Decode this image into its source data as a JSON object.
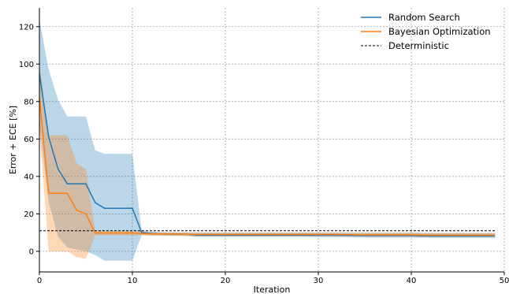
{
  "chart_data": {
    "type": "line",
    "xlabel": "Iteration",
    "ylabel": "Error + ECE [%]",
    "xlim": [
      0,
      50
    ],
    "ylim": [
      -11,
      130
    ],
    "xticks": [
      0,
      10,
      20,
      30,
      40,
      50
    ],
    "yticks": [
      0,
      20,
      40,
      60,
      80,
      100,
      120
    ],
    "grid": true,
    "legend_position": "top-right",
    "series": [
      {
        "name": "Random Search",
        "color": "#1f77b4",
        "x": [
          0,
          1,
          2,
          3,
          4,
          5,
          6,
          7,
          8,
          9,
          10,
          11,
          12,
          13,
          14,
          15,
          16,
          17,
          18,
          19,
          20,
          22,
          25,
          28,
          30,
          32,
          35,
          38,
          40,
          42,
          45,
          47,
          49
        ],
        "y": [
          95,
          61,
          44,
          36,
          36,
          36,
          26,
          23,
          23,
          23,
          23,
          10,
          9.5,
          9.3,
          9.2,
          9.2,
          9.1,
          8.7,
          8.7,
          8.7,
          8.7,
          8.7,
          8.7,
          8.7,
          8.6,
          8.6,
          8.4,
          8.4,
          8.4,
          8.2,
          8.2,
          8.2,
          8.2
        ],
        "upper": [
          124,
          97,
          81,
          72,
          72,
          72,
          54,
          52,
          52,
          52,
          52,
          11,
          10.5,
          10.3,
          10.2,
          10.1,
          10.1,
          10,
          10,
          10,
          10,
          10,
          10,
          10,
          10,
          10,
          9.9,
          9.9,
          9.9,
          9.8,
          9.8,
          9.8,
          9.8
        ],
        "lower": [
          67,
          26,
          8,
          2,
          1,
          0,
          -2,
          -5,
          -5,
          -5,
          -5,
          8.8,
          8.5,
          8.4,
          8.3,
          8.2,
          8.1,
          7.6,
          7.6,
          7.6,
          7.6,
          7.6,
          7.6,
          7.6,
          7.5,
          7.5,
          7.3,
          7.3,
          7.3,
          7.1,
          7.1,
          7.1,
          7.1
        ]
      },
      {
        "name": "Bayesian Optimization",
        "color": "#ff7f0e",
        "x": [
          0,
          1,
          2,
          3,
          4,
          5,
          6,
          7,
          8,
          9,
          10,
          11,
          12,
          13,
          14,
          15,
          16,
          17,
          18,
          19,
          20,
          22,
          25,
          28,
          30,
          32,
          35,
          38,
          40,
          42,
          45,
          47,
          49
        ],
        "y": [
          82,
          31,
          31,
          31,
          22,
          20,
          9.8,
          9.8,
          9.8,
          9.8,
          9.8,
          9.5,
          9.3,
          9.3,
          9.2,
          9.2,
          9.1,
          9,
          9,
          9,
          9,
          9,
          9,
          9,
          9,
          9,
          8.8,
          8.8,
          8.8,
          8.6,
          8.6,
          8.6,
          8.6
        ],
        "upper": [
          100,
          62,
          62,
          62,
          47,
          44,
          11,
          11,
          11,
          11,
          11,
          10.5,
          10.3,
          10.2,
          10.2,
          10.1,
          10.1,
          10,
          10,
          10,
          10,
          10,
          10,
          10,
          10,
          10,
          9.9,
          9.9,
          9.9,
          9.8,
          9.8,
          9.8,
          9.8
        ],
        "lower": [
          65,
          0,
          0,
          0,
          -3,
          -4,
          8.5,
          8.5,
          8.5,
          8.5,
          8.5,
          8.4,
          8.3,
          8.3,
          8.2,
          8.2,
          8.1,
          8,
          8,
          8,
          8,
          8,
          8,
          8,
          8,
          8,
          7.8,
          7.8,
          7.8,
          7.6,
          7.6,
          7.6,
          7.6
        ]
      }
    ],
    "reference_line": {
      "name": "Deterministic",
      "y": 11,
      "x_range": [
        0,
        49
      ],
      "color": "#000000",
      "style": "dashed"
    }
  }
}
